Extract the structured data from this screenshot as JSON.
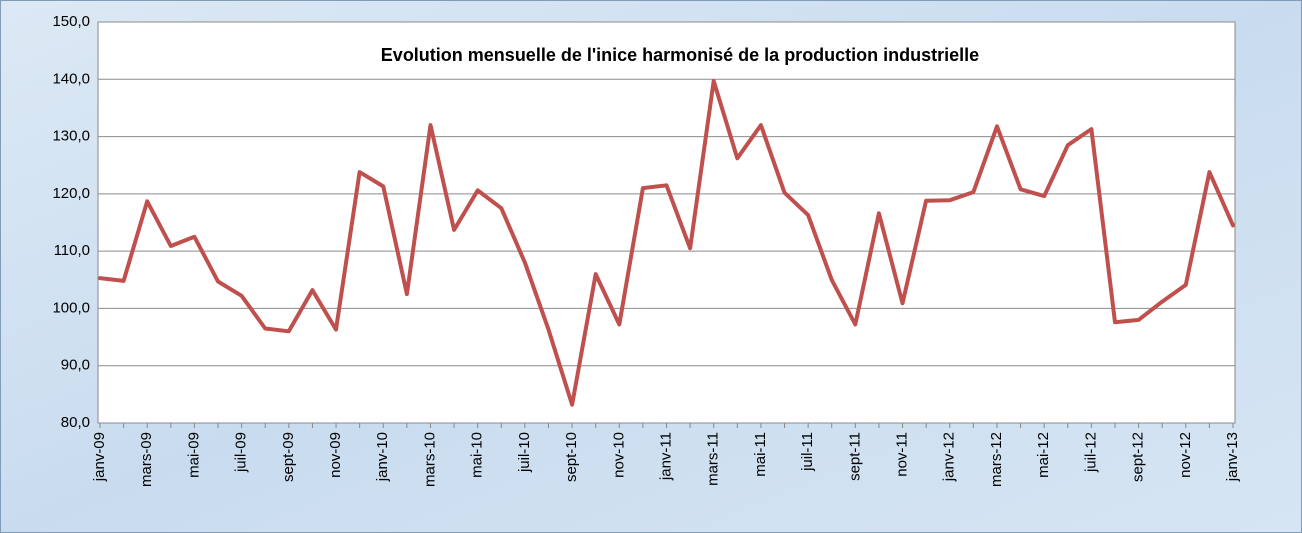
{
  "chart_data": {
    "type": "line",
    "title": "Evolution mensuelle de l'inice harmonisé de la production industrielle",
    "categories": [
      "janv-09",
      null,
      "mars-09",
      null,
      "mai-09",
      null,
      "juil-09",
      null,
      "sept-09",
      null,
      "nov-09",
      null,
      "janv-10",
      null,
      "mars-10",
      null,
      "mai-10",
      null,
      "juil-10",
      null,
      "sept-10",
      null,
      "nov-10",
      null,
      "janv-11",
      null,
      "mars-11",
      null,
      "mai-11",
      null,
      "juil-11",
      null,
      "sept-11",
      null,
      "nov-11",
      null,
      "janv-12",
      null,
      "mars-12",
      null,
      "mai-12",
      null,
      "juil-12",
      null,
      "sept-12",
      null,
      "nov-12",
      null,
      "janv-13"
    ],
    "values": [
      105.3,
      104.8,
      118.7,
      110.9,
      112.5,
      104.7,
      102.2,
      96.5,
      96.0,
      103.2,
      96.3,
      123.8,
      121.3,
      102.5,
      132.0,
      113.7,
      120.6,
      117.5,
      108.0,
      96.3,
      83.2,
      106.0,
      97.2,
      121.0,
      121.5,
      110.5,
      139.7,
      126.2,
      132.0,
      120.2,
      116.3,
      105.0,
      97.2,
      116.6,
      100.9,
      118.8,
      118.9,
      120.3,
      131.8,
      120.8,
      119.6,
      128.5,
      131.3,
      97.6,
      98.0,
      101.2,
      104.1,
      123.8,
      114.5
    ],
    "color": "#c0504d",
    "ylim": [
      80,
      150
    ],
    "yticks": [
      {
        "value": 80,
        "label": "80,0"
      },
      {
        "value": 90,
        "label": "90,0"
      },
      {
        "value": 100,
        "label": "100,0"
      },
      {
        "value": 110,
        "label": "110,0"
      },
      {
        "value": 120,
        "label": "120,0"
      },
      {
        "value": 130,
        "label": "130,0"
      },
      {
        "value": 140,
        "label": "140,0"
      },
      {
        "value": 150,
        "label": "150,0"
      }
    ],
    "grid": true
  }
}
